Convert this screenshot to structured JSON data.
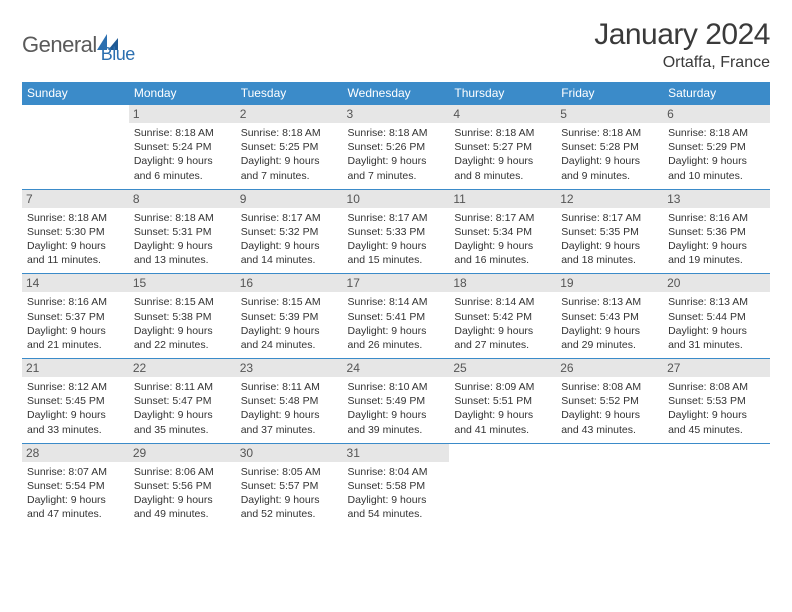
{
  "logo": {
    "text1": "General",
    "text2": "Blue"
  },
  "title": "January 2024",
  "location": "Ortaffa, France",
  "colors": {
    "header_bg": "#3b8bc9",
    "header_text": "#ffffff",
    "daynum_bg": "#e6e6e6",
    "border": "#3b8bc9",
    "logo_gray": "#5a5a5a",
    "logo_blue": "#2b6fb0"
  },
  "day_headers": [
    "Sunday",
    "Monday",
    "Tuesday",
    "Wednesday",
    "Thursday",
    "Friday",
    "Saturday"
  ],
  "weeks": [
    [
      {
        "num": "",
        "sunrise": "",
        "sunset": "",
        "daylight": ""
      },
      {
        "num": "1",
        "sunrise": "Sunrise: 8:18 AM",
        "sunset": "Sunset: 5:24 PM",
        "daylight": "Daylight: 9 hours and 6 minutes."
      },
      {
        "num": "2",
        "sunrise": "Sunrise: 8:18 AM",
        "sunset": "Sunset: 5:25 PM",
        "daylight": "Daylight: 9 hours and 7 minutes."
      },
      {
        "num": "3",
        "sunrise": "Sunrise: 8:18 AM",
        "sunset": "Sunset: 5:26 PM",
        "daylight": "Daylight: 9 hours and 7 minutes."
      },
      {
        "num": "4",
        "sunrise": "Sunrise: 8:18 AM",
        "sunset": "Sunset: 5:27 PM",
        "daylight": "Daylight: 9 hours and 8 minutes."
      },
      {
        "num": "5",
        "sunrise": "Sunrise: 8:18 AM",
        "sunset": "Sunset: 5:28 PM",
        "daylight": "Daylight: 9 hours and 9 minutes."
      },
      {
        "num": "6",
        "sunrise": "Sunrise: 8:18 AM",
        "sunset": "Sunset: 5:29 PM",
        "daylight": "Daylight: 9 hours and 10 minutes."
      }
    ],
    [
      {
        "num": "7",
        "sunrise": "Sunrise: 8:18 AM",
        "sunset": "Sunset: 5:30 PM",
        "daylight": "Daylight: 9 hours and 11 minutes."
      },
      {
        "num": "8",
        "sunrise": "Sunrise: 8:18 AM",
        "sunset": "Sunset: 5:31 PM",
        "daylight": "Daylight: 9 hours and 13 minutes."
      },
      {
        "num": "9",
        "sunrise": "Sunrise: 8:17 AM",
        "sunset": "Sunset: 5:32 PM",
        "daylight": "Daylight: 9 hours and 14 minutes."
      },
      {
        "num": "10",
        "sunrise": "Sunrise: 8:17 AM",
        "sunset": "Sunset: 5:33 PM",
        "daylight": "Daylight: 9 hours and 15 minutes."
      },
      {
        "num": "11",
        "sunrise": "Sunrise: 8:17 AM",
        "sunset": "Sunset: 5:34 PM",
        "daylight": "Daylight: 9 hours and 16 minutes."
      },
      {
        "num": "12",
        "sunrise": "Sunrise: 8:17 AM",
        "sunset": "Sunset: 5:35 PM",
        "daylight": "Daylight: 9 hours and 18 minutes."
      },
      {
        "num": "13",
        "sunrise": "Sunrise: 8:16 AM",
        "sunset": "Sunset: 5:36 PM",
        "daylight": "Daylight: 9 hours and 19 minutes."
      }
    ],
    [
      {
        "num": "14",
        "sunrise": "Sunrise: 8:16 AM",
        "sunset": "Sunset: 5:37 PM",
        "daylight": "Daylight: 9 hours and 21 minutes."
      },
      {
        "num": "15",
        "sunrise": "Sunrise: 8:15 AM",
        "sunset": "Sunset: 5:38 PM",
        "daylight": "Daylight: 9 hours and 22 minutes."
      },
      {
        "num": "16",
        "sunrise": "Sunrise: 8:15 AM",
        "sunset": "Sunset: 5:39 PM",
        "daylight": "Daylight: 9 hours and 24 minutes."
      },
      {
        "num": "17",
        "sunrise": "Sunrise: 8:14 AM",
        "sunset": "Sunset: 5:41 PM",
        "daylight": "Daylight: 9 hours and 26 minutes."
      },
      {
        "num": "18",
        "sunrise": "Sunrise: 8:14 AM",
        "sunset": "Sunset: 5:42 PM",
        "daylight": "Daylight: 9 hours and 27 minutes."
      },
      {
        "num": "19",
        "sunrise": "Sunrise: 8:13 AM",
        "sunset": "Sunset: 5:43 PM",
        "daylight": "Daylight: 9 hours and 29 minutes."
      },
      {
        "num": "20",
        "sunrise": "Sunrise: 8:13 AM",
        "sunset": "Sunset: 5:44 PM",
        "daylight": "Daylight: 9 hours and 31 minutes."
      }
    ],
    [
      {
        "num": "21",
        "sunrise": "Sunrise: 8:12 AM",
        "sunset": "Sunset: 5:45 PM",
        "daylight": "Daylight: 9 hours and 33 minutes."
      },
      {
        "num": "22",
        "sunrise": "Sunrise: 8:11 AM",
        "sunset": "Sunset: 5:47 PM",
        "daylight": "Daylight: 9 hours and 35 minutes."
      },
      {
        "num": "23",
        "sunrise": "Sunrise: 8:11 AM",
        "sunset": "Sunset: 5:48 PM",
        "daylight": "Daylight: 9 hours and 37 minutes."
      },
      {
        "num": "24",
        "sunrise": "Sunrise: 8:10 AM",
        "sunset": "Sunset: 5:49 PM",
        "daylight": "Daylight: 9 hours and 39 minutes."
      },
      {
        "num": "25",
        "sunrise": "Sunrise: 8:09 AM",
        "sunset": "Sunset: 5:51 PM",
        "daylight": "Daylight: 9 hours and 41 minutes."
      },
      {
        "num": "26",
        "sunrise": "Sunrise: 8:08 AM",
        "sunset": "Sunset: 5:52 PM",
        "daylight": "Daylight: 9 hours and 43 minutes."
      },
      {
        "num": "27",
        "sunrise": "Sunrise: 8:08 AM",
        "sunset": "Sunset: 5:53 PM",
        "daylight": "Daylight: 9 hours and 45 minutes."
      }
    ],
    [
      {
        "num": "28",
        "sunrise": "Sunrise: 8:07 AM",
        "sunset": "Sunset: 5:54 PM",
        "daylight": "Daylight: 9 hours and 47 minutes."
      },
      {
        "num": "29",
        "sunrise": "Sunrise: 8:06 AM",
        "sunset": "Sunset: 5:56 PM",
        "daylight": "Daylight: 9 hours and 49 minutes."
      },
      {
        "num": "30",
        "sunrise": "Sunrise: 8:05 AM",
        "sunset": "Sunset: 5:57 PM",
        "daylight": "Daylight: 9 hours and 52 minutes."
      },
      {
        "num": "31",
        "sunrise": "Sunrise: 8:04 AM",
        "sunset": "Sunset: 5:58 PM",
        "daylight": "Daylight: 9 hours and 54 minutes."
      },
      {
        "num": "",
        "sunrise": "",
        "sunset": "",
        "daylight": ""
      },
      {
        "num": "",
        "sunrise": "",
        "sunset": "",
        "daylight": ""
      },
      {
        "num": "",
        "sunrise": "",
        "sunset": "",
        "daylight": ""
      }
    ]
  ]
}
